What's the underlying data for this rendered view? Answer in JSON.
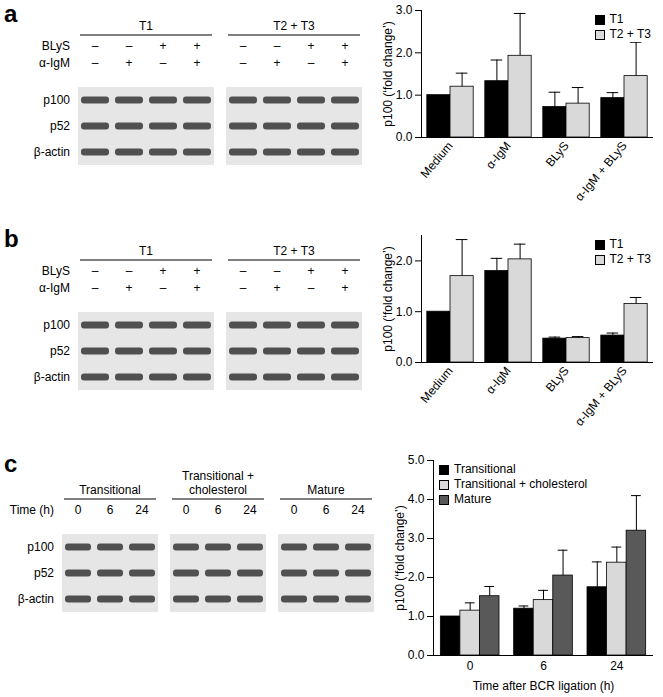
{
  "chart_data": [
    {
      "type": "bar",
      "categories": [
        "Medium",
        "α-IgM",
        "BLyS",
        "α-IgM + BLyS"
      ],
      "y_label": "p100 (‘fold change’)",
      "ylim": [
        0,
        3
      ],
      "yticks": [
        0,
        1,
        2,
        3
      ],
      "legend": "top-right",
      "series": [
        {
          "name": "T1",
          "color": "#000000",
          "values": [
            1.0,
            1.33,
            0.72,
            0.93
          ],
          "errors": [
            0,
            0.5,
            0.35,
            0.13
          ]
        },
        {
          "name": "T2 + T3",
          "color": "#d9d9d9",
          "values": [
            1.2,
            1.93,
            0.8,
            1.45
          ],
          "errors": [
            0.32,
            1.0,
            0.38,
            0.8
          ]
        }
      ]
    },
    {
      "type": "bar",
      "categories": [
        "Medium",
        "α-IgM",
        "BLyS",
        "α-IgM + BLyS"
      ],
      "y_label": "p100 (‘fold change’)",
      "ylim": [
        0,
        2.5
      ],
      "yticks": [
        0,
        1,
        2
      ],
      "legend": "top-right",
      "series": [
        {
          "name": "T1",
          "color": "#000000",
          "values": [
            1.0,
            1.8,
            0.47,
            0.53
          ],
          "errors": [
            0,
            0.25,
            0.03,
            0.05
          ]
        },
        {
          "name": "T2 + T3",
          "color": "#d9d9d9",
          "values": [
            1.7,
            2.03,
            0.48,
            1.15
          ],
          "errors": [
            0.72,
            0.3,
            0.03,
            0.13
          ]
        }
      ]
    },
    {
      "type": "bar",
      "categories": [
        "0",
        "6",
        "24"
      ],
      "x_label": "Time after BCR ligation (h)",
      "y_label": "p100 (‘fold change’)",
      "ylim": [
        0,
        5
      ],
      "yticks": [
        0,
        1,
        2,
        3,
        4,
        5
      ],
      "legend": "top-left",
      "series": [
        {
          "name": "Transitional",
          "color": "#000000",
          "values": [
            1.0,
            1.2,
            1.75
          ],
          "errors": [
            0,
            0.07,
            0.65
          ]
        },
        {
          "name": "Transitional + cholesterol",
          "color": "#d9d9d9",
          "values": [
            1.15,
            1.42,
            2.38
          ],
          "errors": [
            0.2,
            0.25,
            0.4
          ]
        },
        {
          "name": "Mature",
          "color": "#595959",
          "values": [
            1.52,
            2.05,
            3.2
          ],
          "errors": [
            0.25,
            0.65,
            0.9
          ]
        }
      ]
    }
  ],
  "blots": [
    {
      "panel": "a",
      "row_labels": [
        "BLyS",
        "α-IgM"
      ],
      "bands": [
        "p100",
        "p52",
        "β-actin"
      ],
      "groups": [
        {
          "name": "T1",
          "signs": [
            [
              "–",
              "–",
              "+",
              "+"
            ],
            [
              "–",
              "+",
              "–",
              "+"
            ]
          ]
        },
        {
          "name": "T2 + T3",
          "signs": [
            [
              "–",
              "–",
              "+",
              "+"
            ],
            [
              "–",
              "+",
              "–",
              "+"
            ]
          ]
        }
      ]
    },
    {
      "panel": "b",
      "row_labels": [
        "BLyS",
        "α-IgM"
      ],
      "bands": [
        "p100",
        "p52",
        "β-actin"
      ],
      "groups": [
        {
          "name": "T1",
          "signs": [
            [
              "–",
              "–",
              "+",
              "+"
            ],
            [
              "–",
              "+",
              "–",
              "+"
            ]
          ]
        },
        {
          "name": "T2 + T3",
          "signs": [
            [
              "–",
              "–",
              "+",
              "+"
            ],
            [
              "–",
              "+",
              "–",
              "+"
            ]
          ]
        }
      ]
    },
    {
      "panel": "c",
      "row_labels": [
        "Time (h)"
      ],
      "bands": [
        "p100",
        "p52",
        "β-actin"
      ],
      "groups": [
        {
          "name": "Transitional",
          "signs": [
            [
              "0",
              "6",
              "24"
            ]
          ]
        },
        {
          "name": "Transitional + cholesterol",
          "signs": [
            [
              "0",
              "6",
              "24"
            ]
          ]
        },
        {
          "name": "Mature",
          "signs": [
            [
              "0",
              "6",
              "24"
            ]
          ]
        }
      ]
    }
  ]
}
